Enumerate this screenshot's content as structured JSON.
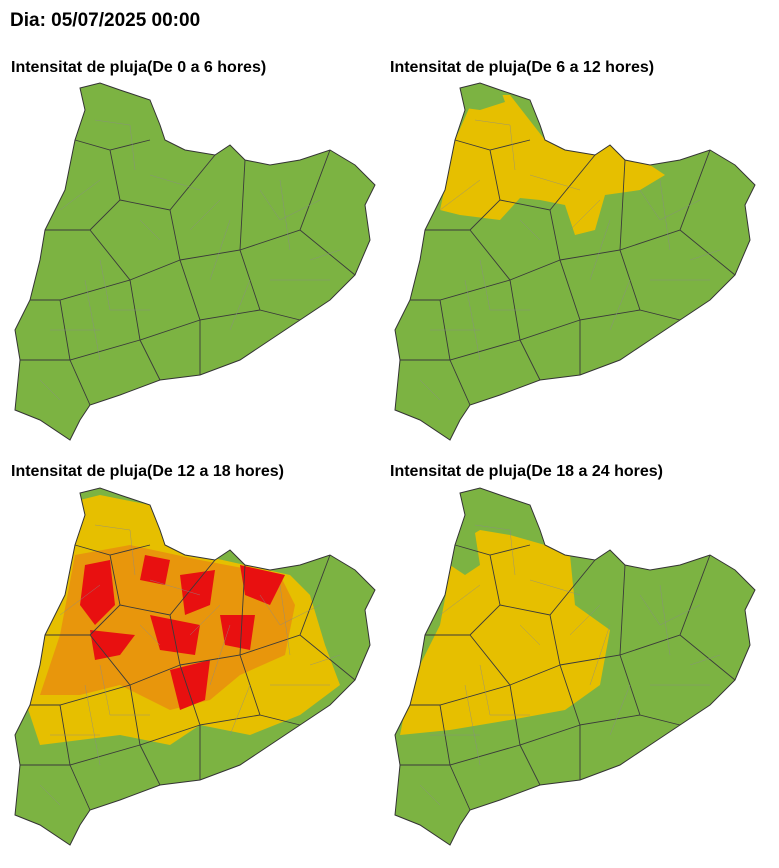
{
  "header": {
    "title": "Dia: 05/07/2025 00:00"
  },
  "panels": [
    {
      "title": "Intensitat de pluja(De 0 a 6 hores)"
    },
    {
      "title": "Intensitat de pluja(De 6 a 12 hores)"
    },
    {
      "title": "Intensitat de pluja(De 12 a 18 hores)"
    },
    {
      "title": "Intensitat de pluja(De 18 a 24 hores)"
    }
  ]
}
